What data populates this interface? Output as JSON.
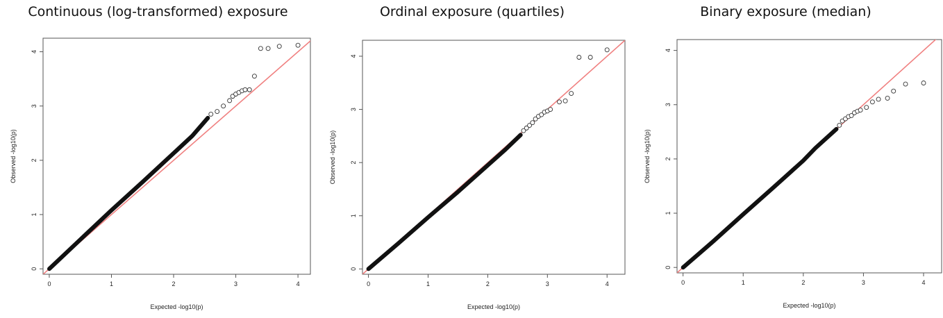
{
  "chart_data": [
    {
      "type": "scatter",
      "title": "Continuous (log-transformed) exposure",
      "xlabel": "Expected -log10(p)",
      "ylabel": "Observed -log10(p)",
      "xlim": [
        -0.1,
        4.2
      ],
      "ylim": [
        -0.1,
        4.25
      ],
      "xticks": [
        0,
        1,
        2,
        3,
        4
      ],
      "yticks": [
        0,
        1,
        2,
        3,
        4
      ],
      "reference_line": {
        "color": "#f08080",
        "from": [
          -0.1,
          -0.1
        ],
        "to": [
          4.3,
          4.3
        ]
      },
      "series": [
        {
          "dense": [
            [
              0,
              0
            ],
            [
              0.5,
              0.54
            ],
            [
              1,
              1.08
            ],
            [
              1.5,
              1.6
            ],
            [
              2,
              2.13
            ],
            [
              2.3,
              2.45
            ],
            [
              2.55,
              2.78
            ]
          ],
          "points": [
            [
              2.6,
              2.85
            ],
            [
              2.7,
              2.9
            ],
            [
              2.8,
              3.0
            ],
            [
              2.9,
              3.1
            ],
            [
              2.95,
              3.18
            ],
            [
              3.0,
              3.22
            ],
            [
              3.05,
              3.25
            ],
            [
              3.1,
              3.28
            ],
            [
              3.15,
              3.3
            ],
            [
              3.22,
              3.3
            ],
            [
              3.3,
              3.55
            ],
            [
              3.4,
              4.06
            ],
            [
              3.52,
              4.06
            ],
            [
              3.7,
              4.1
            ],
            [
              4.0,
              4.12
            ]
          ]
        }
      ]
    },
    {
      "type": "scatter",
      "title": "Ordinal exposure (quartiles)",
      "xlabel": "Expected -log10(p)",
      "ylabel": "Observed -log10(p)",
      "xlim": [
        -0.1,
        4.3
      ],
      "ylim": [
        -0.1,
        4.3
      ],
      "xticks": [
        0,
        1,
        2,
        3,
        4
      ],
      "yticks": [
        0,
        1,
        2,
        3,
        4
      ],
      "reference_line": {
        "color": "#f08080",
        "from": [
          -0.1,
          -0.1
        ],
        "to": [
          4.4,
          4.4
        ]
      },
      "series": [
        {
          "dense": [
            [
              0,
              0
            ],
            [
              0.5,
              0.48
            ],
            [
              1,
              0.97
            ],
            [
              1.5,
              1.45
            ],
            [
              2,
              1.95
            ],
            [
              2.3,
              2.25
            ],
            [
              2.55,
              2.52
            ]
          ],
          "points": [
            [
              2.6,
              2.6
            ],
            [
              2.65,
              2.65
            ],
            [
              2.7,
              2.7
            ],
            [
              2.75,
              2.75
            ],
            [
              2.8,
              2.82
            ],
            [
              2.85,
              2.87
            ],
            [
              2.9,
              2.9
            ],
            [
              2.95,
              2.95
            ],
            [
              3.0,
              2.97
            ],
            [
              3.05,
              3.0
            ],
            [
              3.2,
              3.14
            ],
            [
              3.3,
              3.16
            ],
            [
              3.4,
              3.3
            ],
            [
              3.53,
              3.98
            ],
            [
              3.72,
              3.98
            ],
            [
              4.0,
              4.12
            ]
          ]
        }
      ]
    },
    {
      "type": "scatter",
      "title": "Binary exposure (median)",
      "xlabel": "Expected -log10(p)",
      "ylabel": "Observed -log10(p)",
      "xlim": [
        -0.1,
        4.3
      ],
      "ylim": [
        -0.1,
        4.2
      ],
      "xticks": [
        0,
        1,
        2,
        3,
        4
      ],
      "yticks": [
        0,
        1,
        2,
        3,
        4
      ],
      "reference_line": {
        "color": "#f08080",
        "from": [
          -0.1,
          -0.1
        ],
        "to": [
          4.4,
          4.4
        ]
      },
      "series": [
        {
          "dense": [
            [
              0,
              0
            ],
            [
              0.5,
              0.48
            ],
            [
              1,
              0.98
            ],
            [
              1.5,
              1.47
            ],
            [
              2,
              1.97
            ],
            [
              2.2,
              2.2
            ],
            [
              2.55,
              2.55
            ]
          ],
          "points": [
            [
              2.6,
              2.62
            ],
            [
              2.65,
              2.7
            ],
            [
              2.7,
              2.74
            ],
            [
              2.75,
              2.78
            ],
            [
              2.8,
              2.8
            ],
            [
              2.85,
              2.85
            ],
            [
              2.9,
              2.88
            ],
            [
              2.95,
              2.9
            ],
            [
              3.05,
              2.95
            ],
            [
              3.15,
              3.05
            ],
            [
              3.25,
              3.1
            ],
            [
              3.4,
              3.12
            ],
            [
              3.5,
              3.25
            ],
            [
              3.7,
              3.38
            ],
            [
              4.0,
              3.4
            ]
          ]
        }
      ]
    }
  ]
}
